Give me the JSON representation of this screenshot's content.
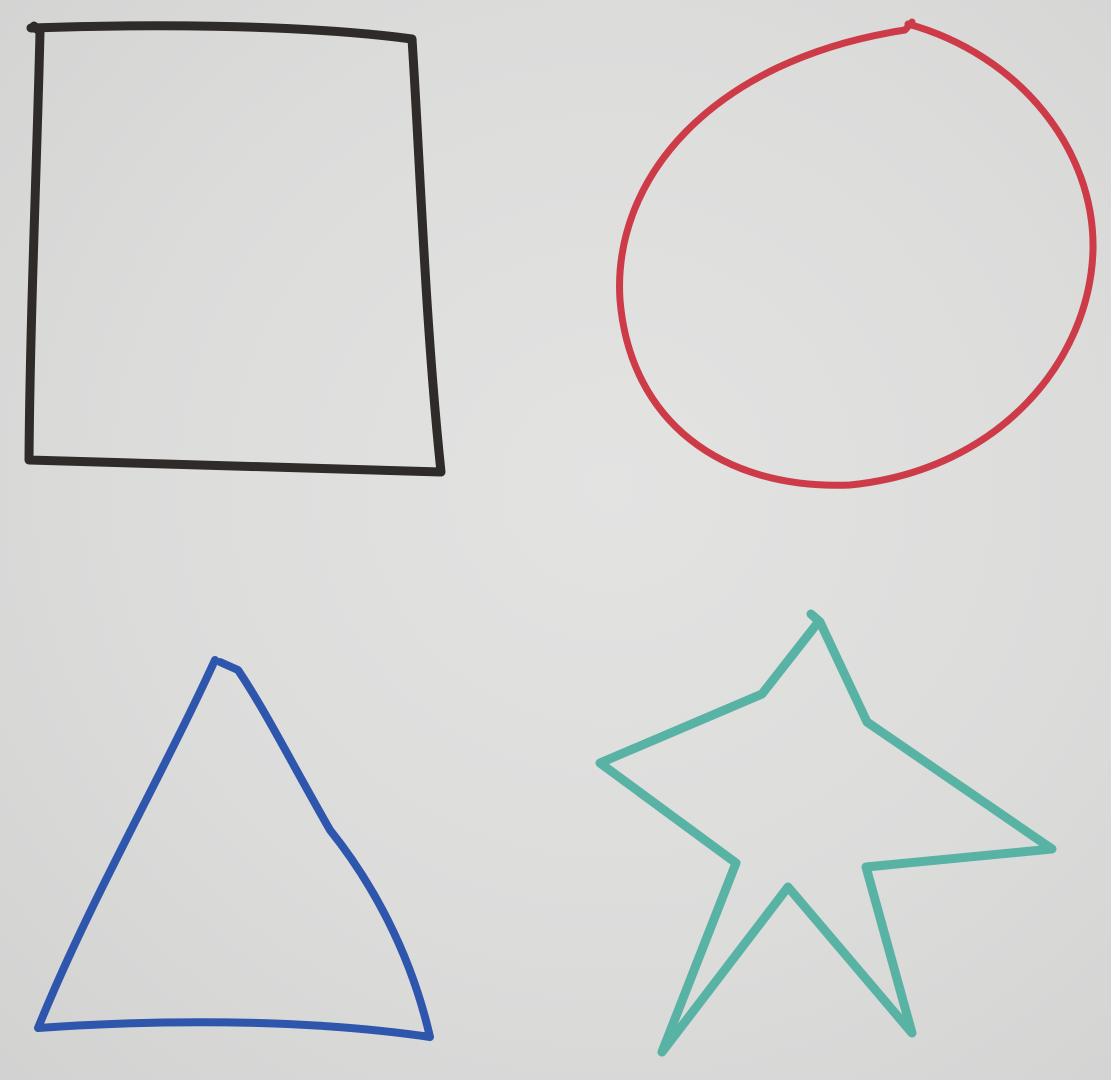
{
  "drawing": {
    "shapes": [
      {
        "name": "square",
        "stroke": "#2f2b29"
      },
      {
        "name": "circle",
        "stroke": "#cc3b47"
      },
      {
        "name": "triangle",
        "stroke": "#2f56ad"
      },
      {
        "name": "star",
        "stroke": "#58b3a4"
      }
    ]
  }
}
